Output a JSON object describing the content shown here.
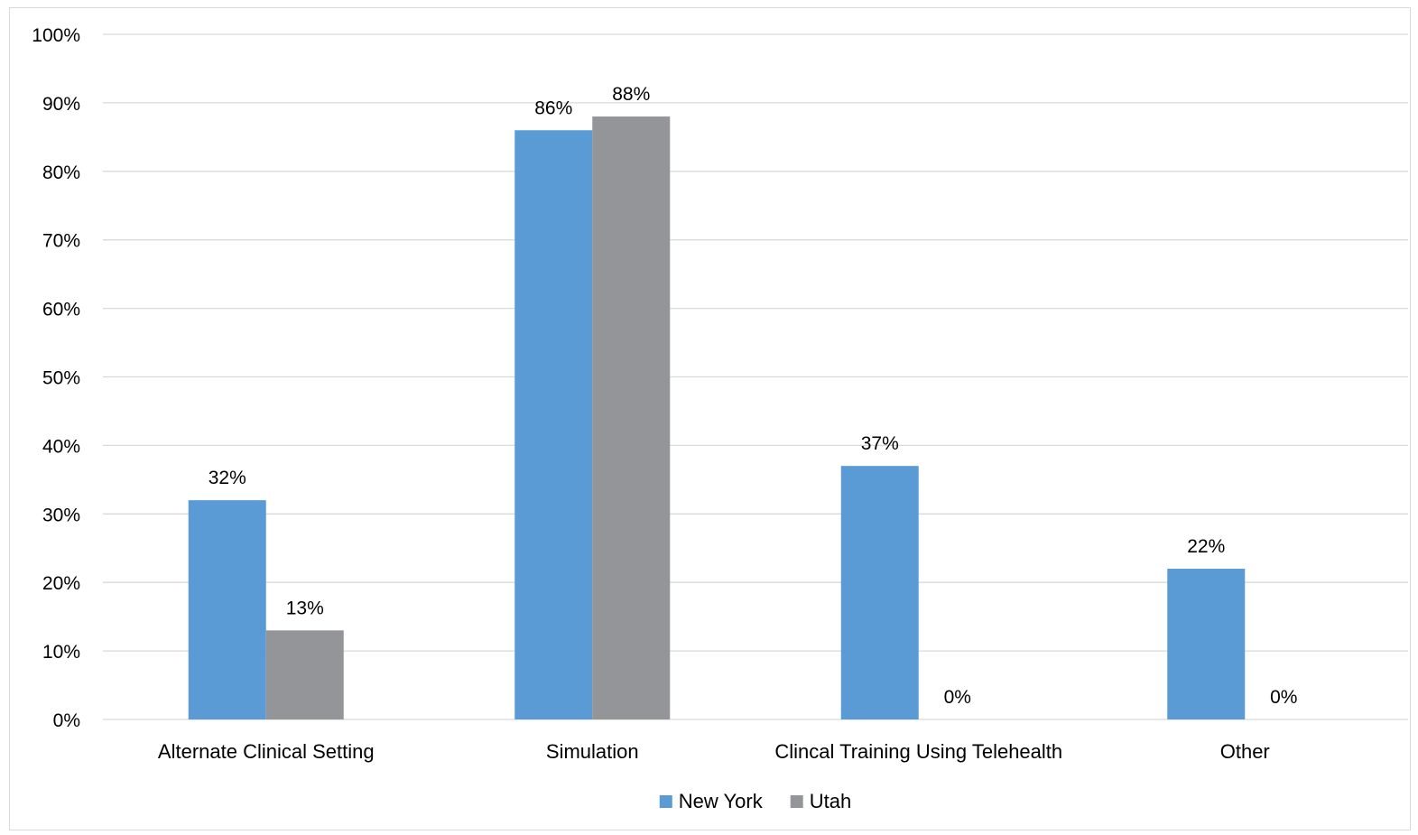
{
  "chart_data": {
    "type": "bar",
    "title": "",
    "xlabel": "",
    "ylabel": "",
    "categories": [
      "Alternate Clinical Setting",
      "Simulation",
      "Clincal Training Using Telehealth",
      "Other"
    ],
    "series": [
      {
        "name": "New York",
        "color": "#5b9bd5",
        "values": [
          32,
          86,
          37,
          22
        ],
        "labels": [
          "32%",
          "86%",
          "37%",
          "22%"
        ]
      },
      {
        "name": "Utah",
        "color": "#939598",
        "values": [
          13,
          88,
          0,
          0
        ],
        "labels": [
          "13%",
          "88%",
          "0%",
          "0%"
        ]
      }
    ],
    "ylim": [
      0,
      100
    ],
    "yticks": [
      0,
      10,
      20,
      30,
      40,
      50,
      60,
      70,
      80,
      90,
      100
    ],
    "ytick_labels": [
      "0%",
      "10%",
      "20%",
      "30%",
      "40%",
      "50%",
      "60%",
      "70%",
      "80%",
      "90%",
      "100%"
    ],
    "grid": true,
    "gridline_color": "#d9d9d9",
    "legend_position": "bottom"
  }
}
